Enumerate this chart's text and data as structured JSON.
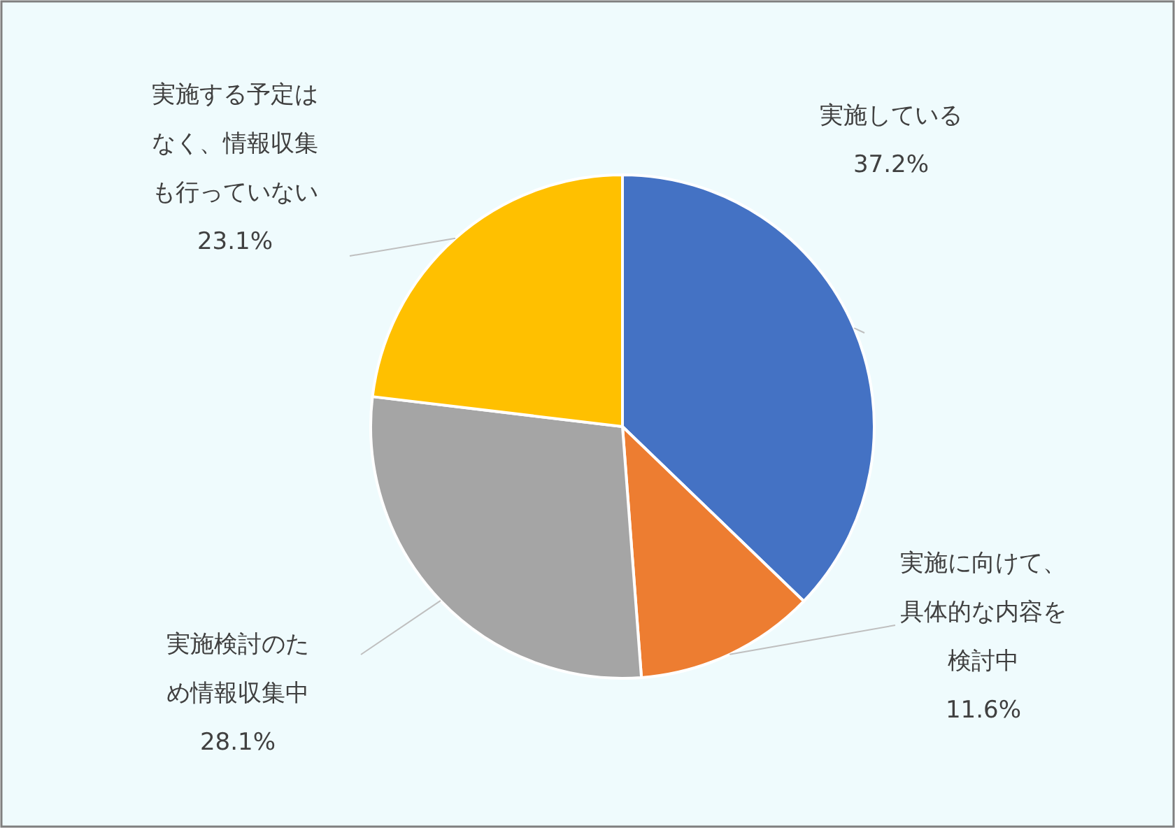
{
  "chart_data": {
    "type": "pie",
    "categories": [
      "実施している",
      "実施に向けて、具体的な内容を検討中",
      "実施検討のため情報収集中",
      "実施する予定はなく、情報収集も行っていない"
    ],
    "values": [
      37.2,
      11.6,
      28.1,
      23.1
    ],
    "colors": [
      "#4472c4",
      "#ed7d31",
      "#a5a5a5",
      "#ffc000"
    ],
    "value_labels": [
      "37.2%",
      "11.6%",
      "28.1%",
      "23.1%"
    ]
  }
}
